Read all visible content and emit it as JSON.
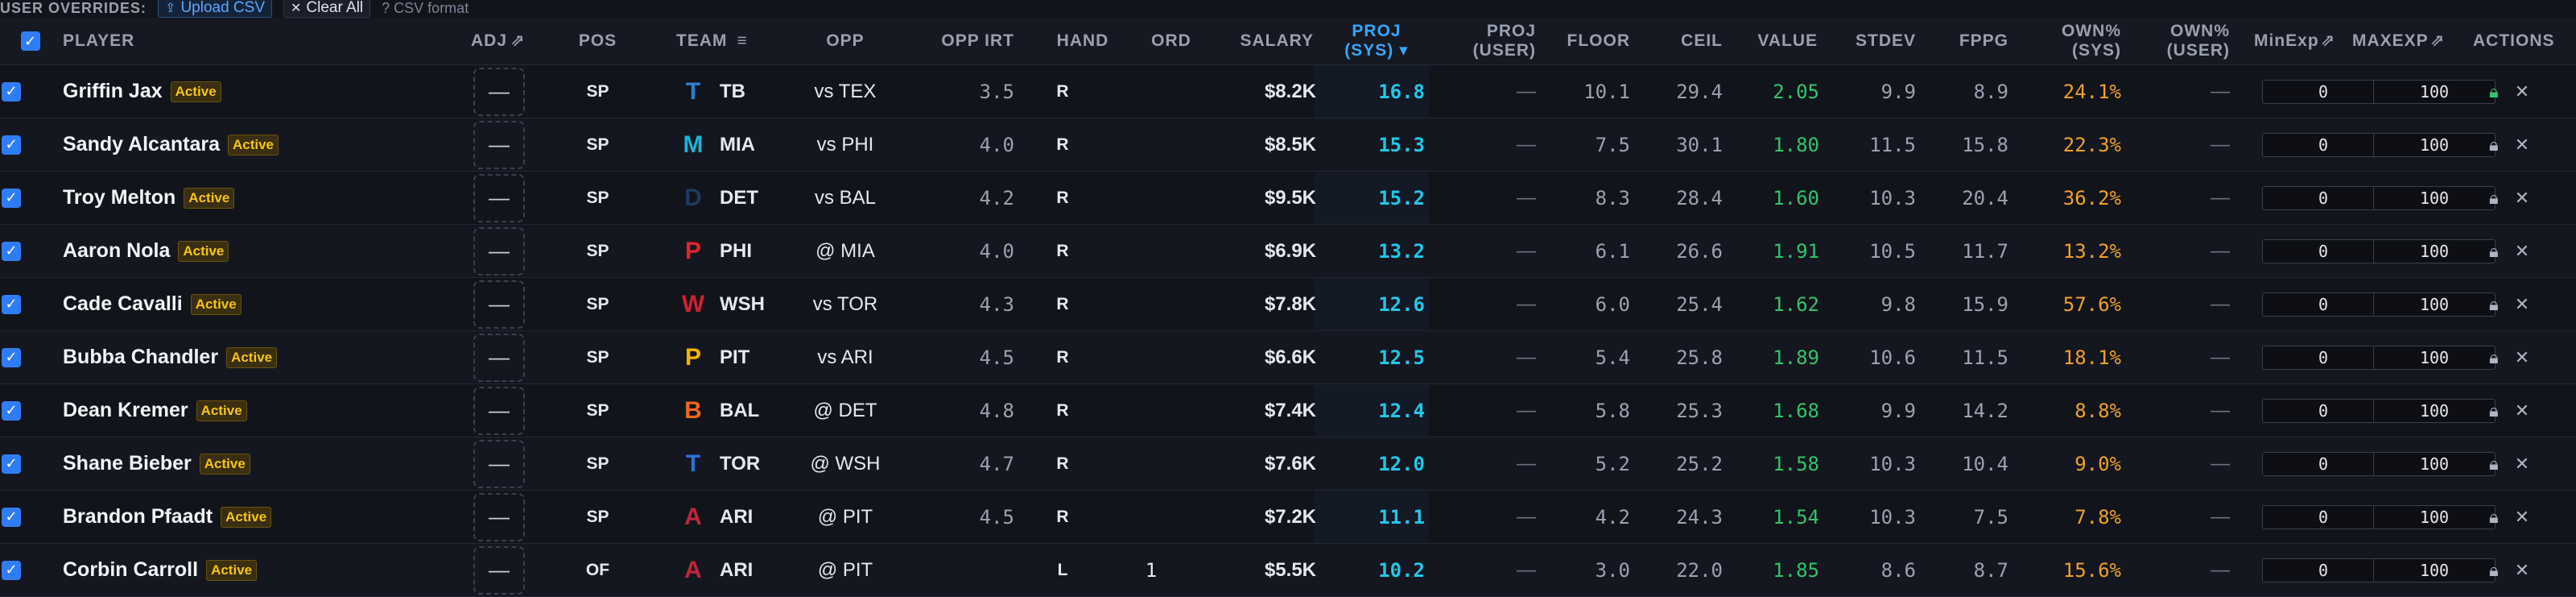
{
  "topbar": {
    "label": "USER OVERRIDES:",
    "upload": "Upload CSV",
    "clear": "Clear All",
    "hint": "? CSV format"
  },
  "headers": {
    "player": "PLAYER",
    "adj": "ADJ",
    "pos": "POS",
    "team": "TEAM",
    "opp": "OPP",
    "opp_irt": "OPP IRT",
    "hand": "HAND",
    "ord": "ORD",
    "salary": "SALARY",
    "proj_sys_1": "PROJ",
    "proj_sys_2": "(SYS)",
    "proj_user_1": "PROJ",
    "proj_user_2": "(USER)",
    "floor": "FLOOR",
    "ceil": "CEIL",
    "value": "VALUE",
    "stdev": "STDEV",
    "fppg": "FPPG",
    "own_sys_1": "OWN%",
    "own_sys_2": "(SYS)",
    "own_user_1": "OWN%",
    "own_user_2": "(USER)",
    "minexp": "MinExp",
    "maxexp": "MAXEXP",
    "actions": "ACTIONS"
  },
  "rows": [
    {
      "name": "Griffin Jax",
      "status": "Active",
      "adj": "—",
      "pos": "SP",
      "team": "TB",
      "logo": "T",
      "logo_color": "#2a7fd4",
      "opp": "vs TEX",
      "irt": "3.5",
      "hand": "R",
      "ord": "",
      "salary": "$8.2K",
      "proj": "16.8",
      "proj_user": "—",
      "floor": "10.1",
      "ceil": "29.4",
      "value": "2.05",
      "stdev": "9.9",
      "fppg": "8.9",
      "own": "24.1%",
      "own_user": "—",
      "minexp": "0",
      "maxexp": "100",
      "lock_color": "green"
    },
    {
      "name": "Sandy Alcantara",
      "status": "Active",
      "adj": "—",
      "pos": "SP",
      "team": "MIA",
      "logo": "M",
      "logo_color": "#19b4d8",
      "opp": "vs PHI",
      "irt": "4.0",
      "hand": "R",
      "ord": "",
      "salary": "$8.5K",
      "proj": "15.3",
      "proj_user": "—",
      "floor": "7.5",
      "ceil": "30.1",
      "value": "1.80",
      "stdev": "11.5",
      "fppg": "15.8",
      "own": "22.3%",
      "own_user": "—",
      "minexp": "0",
      "maxexp": "100",
      "lock_color": "gray"
    },
    {
      "name": "Troy Melton",
      "status": "Active",
      "adj": "—",
      "pos": "SP",
      "team": "DET",
      "logo": "D",
      "logo_color": "#1d3a63",
      "opp": "vs BAL",
      "irt": "4.2",
      "hand": "R",
      "ord": "",
      "salary": "$9.5K",
      "proj": "15.2",
      "proj_user": "—",
      "floor": "8.3",
      "ceil": "28.4",
      "value": "1.60",
      "stdev": "10.3",
      "fppg": "20.4",
      "own": "36.2%",
      "own_user": "—",
      "minexp": "0",
      "maxexp": "100",
      "lock_color": "gray"
    },
    {
      "name": "Aaron Nola",
      "status": "Active",
      "adj": "—",
      "pos": "SP",
      "team": "PHI",
      "logo": "P",
      "logo_color": "#e0252e",
      "opp": "@ MIA",
      "irt": "4.0",
      "hand": "R",
      "ord": "",
      "salary": "$6.9K",
      "proj": "13.2",
      "proj_user": "—",
      "floor": "6.1",
      "ceil": "26.6",
      "value": "1.91",
      "stdev": "10.5",
      "fppg": "11.7",
      "own": "13.2%",
      "own_user": "—",
      "minexp": "0",
      "maxexp": "100",
      "lock_color": "gray"
    },
    {
      "name": "Cade Cavalli",
      "status": "Active",
      "adj": "—",
      "pos": "SP",
      "team": "WSH",
      "logo": "W",
      "logo_color": "#d22030",
      "opp": "vs TOR",
      "irt": "4.3",
      "hand": "R",
      "ord": "",
      "salary": "$7.8K",
      "proj": "12.6",
      "proj_user": "—",
      "floor": "6.0",
      "ceil": "25.4",
      "value": "1.62",
      "stdev": "9.8",
      "fppg": "15.9",
      "own": "57.6%",
      "own_user": "—",
      "minexp": "0",
      "maxexp": "100",
      "lock_color": "gray"
    },
    {
      "name": "Bubba Chandler",
      "status": "Active",
      "adj": "—",
      "pos": "SP",
      "team": "PIT",
      "logo": "P",
      "logo_color": "#f5b400",
      "opp": "vs ARI",
      "irt": "4.5",
      "hand": "R",
      "ord": "",
      "salary": "$6.6K",
      "proj": "12.5",
      "proj_user": "—",
      "floor": "5.4",
      "ceil": "25.8",
      "value": "1.89",
      "stdev": "10.6",
      "fppg": "11.5",
      "own": "18.1%",
      "own_user": "—",
      "minexp": "0",
      "maxexp": "100",
      "lock_color": "gray"
    },
    {
      "name": "Dean Kremer",
      "status": "Active",
      "adj": "—",
      "pos": "SP",
      "team": "BAL",
      "logo": "B",
      "logo_color": "#f0661e",
      "opp": "@ DET",
      "irt": "4.8",
      "hand": "R",
      "ord": "",
      "salary": "$7.4K",
      "proj": "12.4",
      "proj_user": "—",
      "floor": "5.8",
      "ceil": "25.3",
      "value": "1.68",
      "stdev": "9.9",
      "fppg": "14.2",
      "own": "8.8%",
      "own_user": "—",
      "minexp": "0",
      "maxexp": "100",
      "lock_color": "gray"
    },
    {
      "name": "Shane Bieber",
      "status": "Active",
      "adj": "—",
      "pos": "SP",
      "team": "TOR",
      "logo": "T",
      "logo_color": "#2f6fdc",
      "opp": "@ WSH",
      "irt": "4.7",
      "hand": "R",
      "ord": "",
      "salary": "$7.6K",
      "proj": "12.0",
      "proj_user": "—",
      "floor": "5.2",
      "ceil": "25.2",
      "value": "1.58",
      "stdev": "10.3",
      "fppg": "10.4",
      "own": "9.0%",
      "own_user": "—",
      "minexp": "0",
      "maxexp": "100",
      "lock_color": "gray"
    },
    {
      "name": "Brandon Pfaadt",
      "status": "Active",
      "adj": "—",
      "pos": "SP",
      "team": "ARI",
      "logo": "A",
      "logo_color": "#c0263a",
      "opp": "@ PIT",
      "irt": "4.5",
      "hand": "R",
      "ord": "",
      "salary": "$7.2K",
      "proj": "11.1",
      "proj_user": "—",
      "floor": "4.2",
      "ceil": "24.3",
      "value": "1.54",
      "stdev": "10.3",
      "fppg": "7.5",
      "own": "7.8%",
      "own_user": "—",
      "minexp": "0",
      "maxexp": "100",
      "lock_color": "gray"
    },
    {
      "name": "Corbin Carroll",
      "status": "Active",
      "adj": "—",
      "pos": "OF",
      "team": "ARI",
      "logo": "A",
      "logo_color": "#c0263a",
      "opp": "@ PIT",
      "irt": "",
      "hand": "L",
      "ord": "1",
      "salary": "$5.5K",
      "proj": "10.2",
      "proj_user": "—",
      "floor": "3.0",
      "ceil": "22.0",
      "value": "1.85",
      "stdev": "8.6",
      "fppg": "8.7",
      "own": "15.6%",
      "own_user": "—",
      "minexp": "0",
      "maxexp": "100",
      "lock_color": "gray"
    }
  ]
}
